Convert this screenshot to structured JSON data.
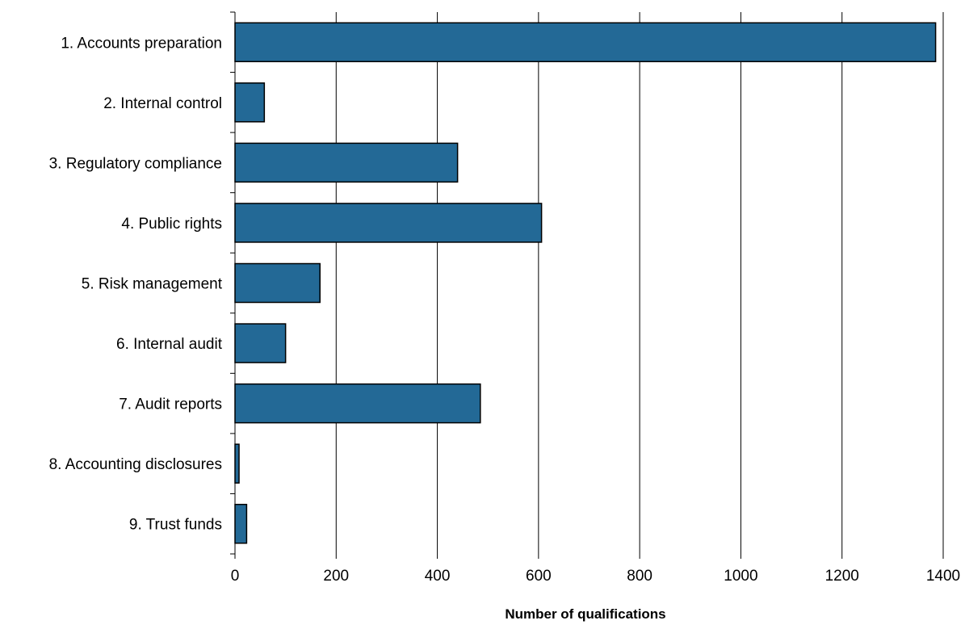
{
  "chart_data": {
    "type": "bar",
    "orientation": "horizontal",
    "title": "",
    "xlabel": "Number of qualifications",
    "ylabel": "",
    "categories": [
      "1. Accounts preparation",
      "2. Internal control",
      "3. Regulatory compliance",
      "4. Public rights",
      "5. Risk management",
      "6. Internal audit",
      "7. Audit reports",
      "8. Accounting disclosures",
      "9. Trust funds"
    ],
    "values": [
      1385,
      58,
      440,
      606,
      168,
      100,
      485,
      8,
      23
    ],
    "xlim": [
      0,
      1400
    ],
    "xticks": [
      0,
      200,
      400,
      600,
      800,
      1000,
      1200,
      1400
    ],
    "grid": "vertical",
    "bar_color": "#236996",
    "bar_edge_color": "#000000",
    "legend": "none"
  }
}
